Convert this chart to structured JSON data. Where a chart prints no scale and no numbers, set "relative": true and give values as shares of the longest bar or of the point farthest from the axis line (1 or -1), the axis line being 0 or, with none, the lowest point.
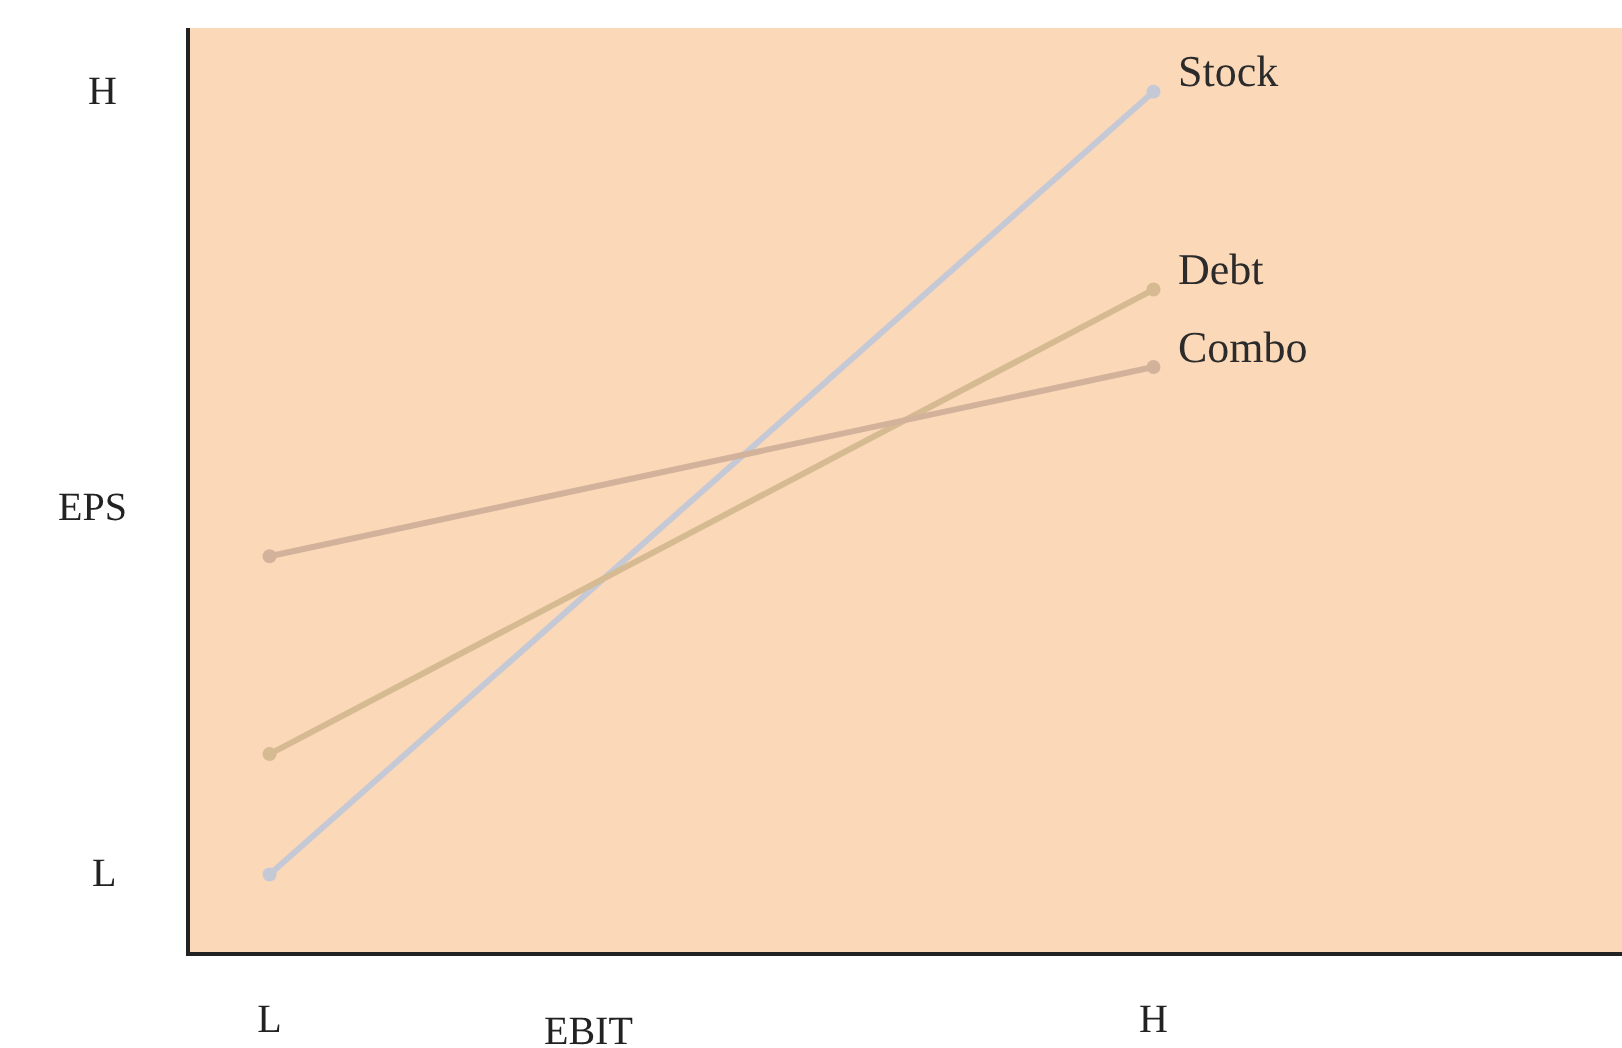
{
  "chart_data": {
    "type": "line",
    "relative": true,
    "xlabel": "EBIT",
    "ylabel": "EPS",
    "categories": [
      "L",
      "H"
    ],
    "series": [
      {
        "name": "Stock",
        "color": "#c5c9d6",
        "values": [
          0.09,
          1
        ]
      },
      {
        "name": "Debt",
        "color": "#d6bb92",
        "values": [
          0.23,
          0.77
        ]
      },
      {
        "name": "Combo",
        "color": "#d3b29c",
        "values": [
          0.46,
          0.68
        ]
      }
    ],
    "annotations": [
      "H",
      "L"
    ],
    "marker": "circle",
    "line_style": "solid",
    "grid": false,
    "legend": false
  }
}
